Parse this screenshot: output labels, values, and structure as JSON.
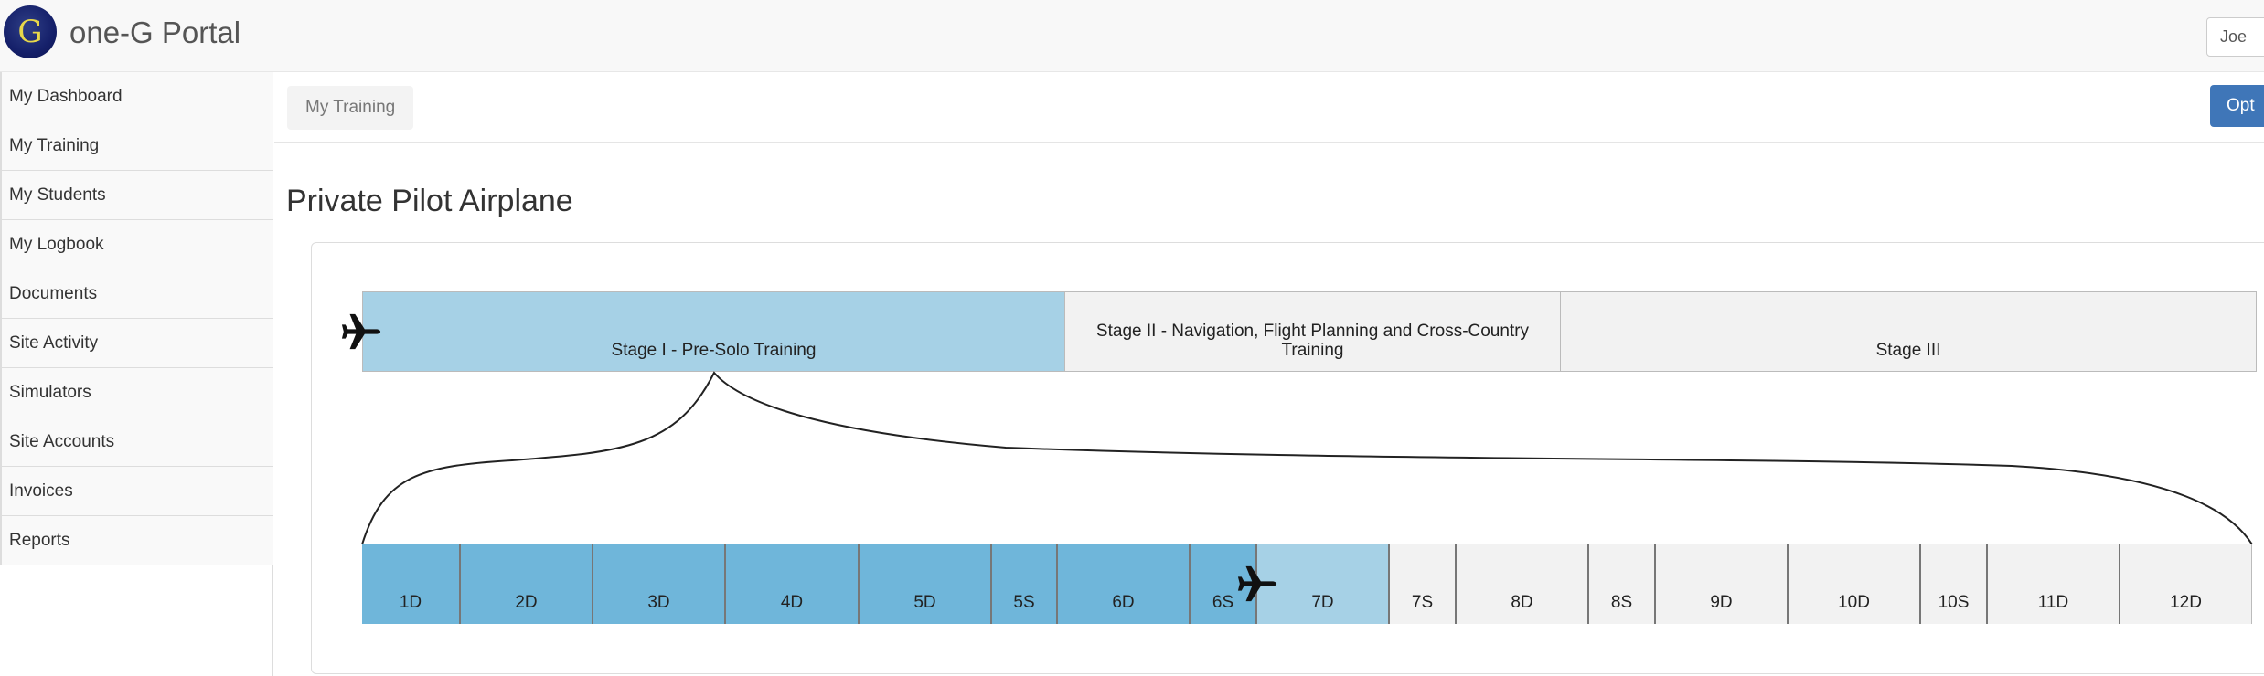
{
  "header": {
    "brand": "one-G Portal",
    "logo_letter": "G",
    "user_label": "Joe"
  },
  "sidebar": {
    "items": [
      {
        "label": "My Dashboard"
      },
      {
        "label": "My Training"
      },
      {
        "label": "My Students"
      },
      {
        "label": "My Logbook"
      },
      {
        "label": "Documents"
      },
      {
        "label": "Site Activity"
      },
      {
        "label": "Simulators"
      },
      {
        "label": "Site Accounts"
      },
      {
        "label": "Invoices"
      },
      {
        "label": "Reports"
      }
    ]
  },
  "main": {
    "breadcrumb": "My Training",
    "options_label": "Opt",
    "title": "Private Pilot Airplane"
  },
  "stages": [
    {
      "label": "Stage I - Pre-Solo Training",
      "status": "active"
    },
    {
      "label": "Stage II - Navigation, Flight Planning and Cross-Country Training",
      "status": "todo"
    },
    {
      "label": "Stage III",
      "status": "todo"
    }
  ],
  "lessons": [
    {
      "label": "1D",
      "status": "done"
    },
    {
      "label": "2D",
      "status": "done"
    },
    {
      "label": "3D",
      "status": "done"
    },
    {
      "label": "4D",
      "status": "done"
    },
    {
      "label": "5D",
      "status": "done"
    },
    {
      "label": "5S",
      "status": "done"
    },
    {
      "label": "6D",
      "status": "done"
    },
    {
      "label": "6S",
      "status": "done"
    },
    {
      "label": "7D",
      "status": "current"
    },
    {
      "label": "7S",
      "status": "todo"
    },
    {
      "label": "8D",
      "status": "todo"
    },
    {
      "label": "8S",
      "status": "todo"
    },
    {
      "label": "9D",
      "status": "todo"
    },
    {
      "label": "10D",
      "status": "todo"
    },
    {
      "label": "10S",
      "status": "todo"
    },
    {
      "label": "11D",
      "status": "todo"
    },
    {
      "label": "12D",
      "status": "todo"
    }
  ],
  "colors": {
    "done": "#6fb6da",
    "current": "#a6d1e6",
    "todo": "#f2f2f2",
    "primary": "#3f76b8"
  },
  "icons": {
    "progress_marker": "airplane-icon"
  }
}
